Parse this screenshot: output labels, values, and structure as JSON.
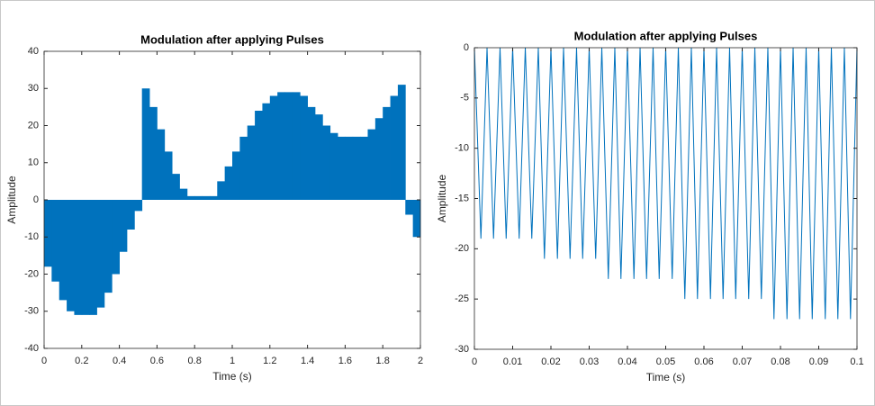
{
  "chart_data": [
    {
      "type": "bar",
      "title": "Modulation after applying Pulses",
      "x_label": "Time (s)",
      "y_label": "Amplitude",
      "color": "#0072bd",
      "x": [
        0,
        0.04,
        0.08,
        0.12,
        0.16,
        0.2,
        0.24,
        0.28,
        0.32,
        0.36,
        0.4,
        0.44,
        0.48,
        0.52,
        0.56,
        0.6,
        0.64,
        0.68,
        0.72,
        0.76,
        0.8,
        0.84,
        0.88,
        0.92,
        0.96,
        1.0,
        1.04,
        1.08,
        1.12,
        1.16,
        1.2,
        1.24,
        1.28,
        1.32,
        1.36,
        1.4,
        1.44,
        1.48,
        1.52,
        1.56,
        1.6,
        1.64,
        1.68,
        1.72,
        1.76,
        1.8,
        1.84,
        1.88,
        1.92,
        1.96
      ],
      "values": [
        -18,
        -22,
        -27,
        -30,
        -31,
        -31,
        -31,
        -29,
        -25,
        -20,
        -14,
        -8,
        -3,
        30,
        25,
        19,
        13,
        7,
        3,
        1,
        1,
        1,
        1,
        5,
        9,
        13,
        17,
        20,
        24,
        26,
        28,
        29,
        29,
        29,
        28,
        25,
        23,
        20,
        18,
        17,
        17,
        17,
        17,
        19,
        22,
        25,
        28,
        31,
        -4,
        -10
      ],
      "xlim": [
        0,
        2
      ],
      "xticks": [
        0,
        0.2,
        0.4,
        0.6,
        0.8,
        1,
        1.2,
        1.4,
        1.6,
        1.8,
        2
      ],
      "ylim": [
        -40,
        40
      ],
      "yticks": [
        -40,
        -30,
        -20,
        -10,
        0,
        10,
        20,
        30,
        40
      ]
    },
    {
      "type": "line",
      "title": "Modulation after applying Pulses",
      "x_label": "Time (s)",
      "y_label": "Amplitude",
      "color": "#0072bd",
      "x": [
        0,
        0.0017,
        0.0033,
        0.005,
        0.0067,
        0.0083,
        0.01,
        0.0117,
        0.0133,
        0.015,
        0.0167,
        0.0183,
        0.02,
        0.0217,
        0.0233,
        0.025,
        0.0267,
        0.0283,
        0.03,
        0.0317,
        0.0333,
        0.035,
        0.0367,
        0.0383,
        0.04,
        0.0417,
        0.0433,
        0.045,
        0.0467,
        0.0483,
        0.05,
        0.0517,
        0.0533,
        0.055,
        0.0567,
        0.0583,
        0.06,
        0.0617,
        0.0633,
        0.065,
        0.0667,
        0.0683,
        0.07,
        0.0717,
        0.0733,
        0.075,
        0.0767,
        0.0783,
        0.08,
        0.0817,
        0.0833,
        0.085,
        0.0867,
        0.0883,
        0.09,
        0.0917,
        0.0933,
        0.095,
        0.0967,
        0.0983,
        0.1
      ],
      "values": [
        0,
        -19,
        0,
        -19,
        0,
        -19,
        0,
        -19,
        0,
        -19,
        0,
        -21,
        0,
        -21,
        0,
        -21,
        0,
        -21,
        0,
        -21,
        0,
        -23,
        0,
        -23,
        0,
        -23,
        0,
        -23,
        0,
        -23,
        0,
        -23,
        0,
        -25,
        0,
        -25,
        0,
        -25,
        0,
        -25,
        0,
        -25,
        0,
        -25,
        0,
        -25,
        0,
        -27,
        0,
        -27,
        0,
        -27,
        0,
        -27,
        0,
        -27,
        0,
        -27,
        0,
        -27,
        0
      ],
      "xlim": [
        0,
        0.1
      ],
      "xticks": [
        0,
        0.01,
        0.02,
        0.03,
        0.04,
        0.05,
        0.06,
        0.07,
        0.08,
        0.09,
        0.1
      ],
      "ylim": [
        -30,
        0
      ],
      "yticks": [
        -30,
        -25,
        -20,
        -15,
        -10,
        -5,
        0
      ]
    }
  ]
}
